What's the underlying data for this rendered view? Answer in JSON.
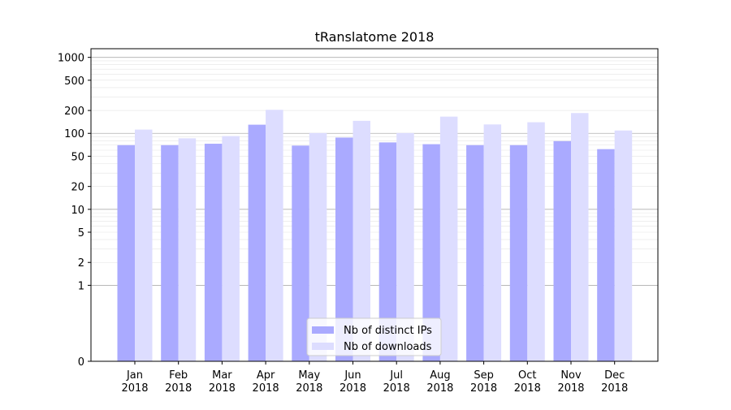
{
  "chart_data": {
    "type": "bar",
    "title": "tRanslatome 2018",
    "xlabel": "",
    "ylabel": "",
    "y_scale": "symlog",
    "ylim": [
      0,
      1300
    ],
    "y_ticks": [
      0,
      1,
      2,
      5,
      10,
      20,
      50,
      100,
      200,
      500,
      1000
    ],
    "grid": "horizontal",
    "legend_position": "bottom-center",
    "categories": [
      [
        "Jan",
        "2018"
      ],
      [
        "Feb",
        "2018"
      ],
      [
        "Mar",
        "2018"
      ],
      [
        "Apr",
        "2018"
      ],
      [
        "May",
        "2018"
      ],
      [
        "Jun",
        "2018"
      ],
      [
        "Jul",
        "2018"
      ],
      [
        "Aug",
        "2018"
      ],
      [
        "Sep",
        "2018"
      ],
      [
        "Oct",
        "2018"
      ],
      [
        "Nov",
        "2018"
      ],
      [
        "Dec",
        "2018"
      ]
    ],
    "series": [
      {
        "name": "Nb of distinct IPs",
        "color": "#aaaaff",
        "values": [
          70,
          70,
          73,
          130,
          69,
          88,
          76,
          72,
          70,
          70,
          79,
          62
        ]
      },
      {
        "name": "Nb of downloads",
        "color": "#ddddff",
        "values": [
          112,
          86,
          92,
          204,
          101,
          146,
          101,
          166,
          131,
          140,
          185,
          109
        ]
      }
    ]
  }
}
